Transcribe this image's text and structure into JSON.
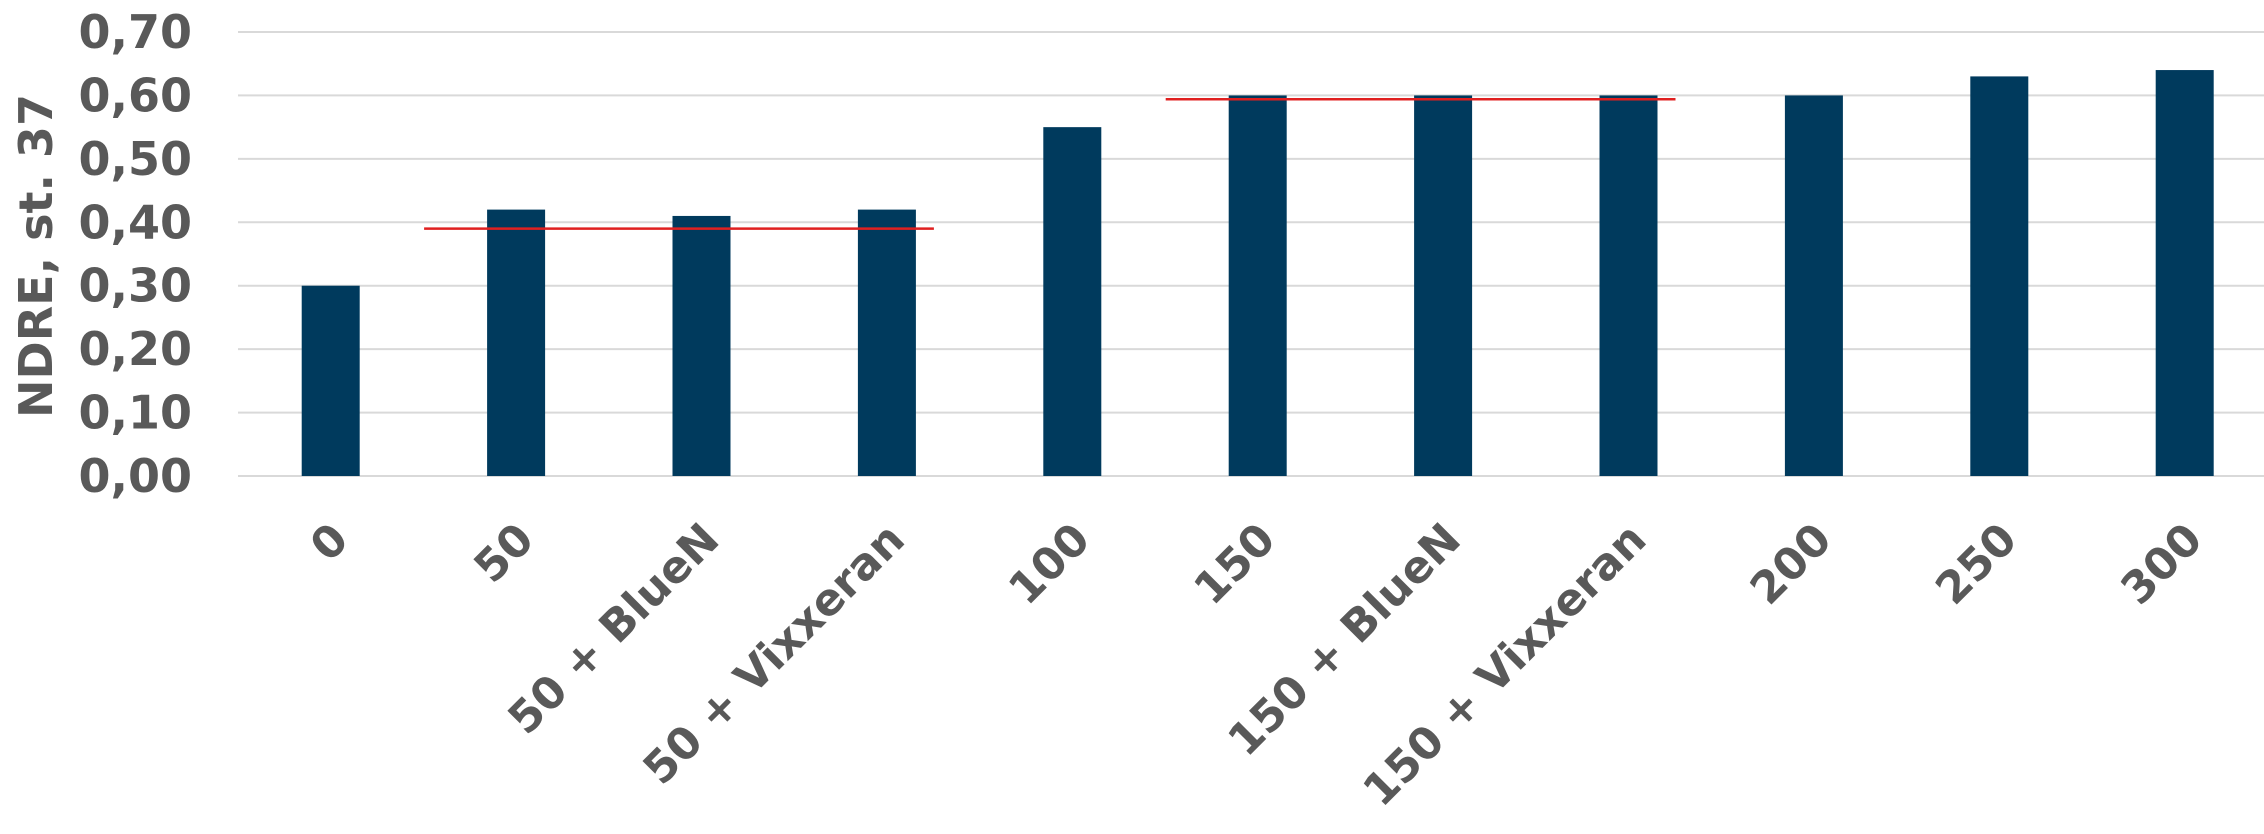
{
  "chart_data": {
    "type": "bar",
    "ylabel": "NDRE, st. 37",
    "ylim": [
      0,
      0.7
    ],
    "y_ticks": [
      "0,00",
      "0,10",
      "0,20",
      "0,30",
      "0,40",
      "0,50",
      "0,60",
      "0,70"
    ],
    "categories": [
      "0",
      "50",
      "50 + BlueN",
      "50 + Vixxeran",
      "100",
      "150",
      "150 + BlueN",
      "150 + Vixxeran",
      "200",
      "250",
      "300"
    ],
    "values": [
      0.3,
      0.42,
      0.41,
      0.42,
      0.55,
      0.6,
      0.6,
      0.6,
      0.6,
      0.63,
      0.64
    ],
    "reference_lines": [
      {
        "from_category": "50",
        "to_category": "50 + Vixxeran",
        "value": 0.39
      },
      {
        "from_category": "150",
        "to_category": "150 + Vixxeran",
        "value": 0.594
      }
    ],
    "grid": true,
    "legend": "none",
    "colors": {
      "bar": "#003a5d",
      "reference_line": "#e02020",
      "grid": "#d9d9d9",
      "text": "#595959"
    }
  }
}
